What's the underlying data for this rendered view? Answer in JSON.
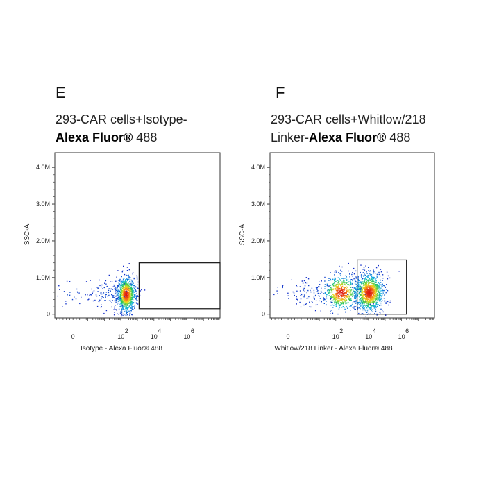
{
  "chart_data": [
    {
      "type": "scatter",
      "panel_label": "E",
      "title_line1": "293-CAR   cells+Isotype-",
      "title_line2_bold": "Alexa Fluor®",
      "title_line2_rest": " 488",
      "xlabel": "Isotype - Alexa Fluor® 488",
      "ylabel": "SSC-A",
      "y_ticks": [
        "0",
        "1.0M",
        "2.0M",
        "3.0M",
        "4.0M"
      ],
      "y_tick_values": [
        0,
        1000000,
        2000000,
        3000000,
        4000000
      ],
      "x_ticks": [
        {
          "base": "0",
          "exp": "",
          "value": -0.9
        },
        {
          "base": "10",
          "exp": "2",
          "value": 2
        },
        {
          "base": "10",
          "exp": "4",
          "value": 4
        },
        {
          "base": "10",
          "exp": "6",
          "value": 6
        }
      ],
      "xlim": [
        -2.0,
        8.0
      ],
      "ylim": [
        -100000,
        4400000
      ],
      "populations": [
        {
          "cx": 2.3,
          "cy": 550000,
          "sx": 0.28,
          "sy": 240000,
          "n": 900,
          "core": true
        },
        {
          "cx": 1.2,
          "cy": 560000,
          "sx": 0.7,
          "sy": 220000,
          "n": 120,
          "core": false
        },
        {
          "cx": -1.0,
          "cy": 580000,
          "sx": 0.45,
          "sy": 180000,
          "n": 25,
          "core": false
        }
      ],
      "gate": {
        "x1": 3.1,
        "x2": 8.0,
        "y1": 150000,
        "y2": 1400000
      }
    },
    {
      "type": "scatter",
      "panel_label": "F",
      "title_line1": "293-CAR     cells+Whitlow/218",
      "title_line2_prefix": "Linker-",
      "title_line2_bold": "Alexa Fluor®",
      "title_line2_rest": " 488",
      "xlabel": "Whitlow/218 Linker - Alexa Fluor® 488",
      "ylabel": "SSC-A",
      "y_ticks": [
        "0",
        "1.0M",
        "2.0M",
        "3.0M",
        "4.0M"
      ],
      "y_tick_values": [
        0,
        1000000,
        2000000,
        3000000,
        4000000
      ],
      "x_ticks": [
        {
          "base": "0",
          "exp": "",
          "value": -0.9
        },
        {
          "base": "10",
          "exp": "2",
          "value": 2
        },
        {
          "base": "10",
          "exp": "4",
          "value": 4
        },
        {
          "base": "10",
          "exp": "6",
          "value": 6
        }
      ],
      "xlim": [
        -2.0,
        8.0
      ],
      "ylim": [
        -100000,
        4400000
      ],
      "populations": [
        {
          "cx": 4.0,
          "cy": 600000,
          "sx": 0.45,
          "sy": 260000,
          "n": 1100,
          "core": true
        },
        {
          "cx": 2.3,
          "cy": 600000,
          "sx": 0.55,
          "sy": 240000,
          "n": 550,
          "core": true
        },
        {
          "cx": 0.6,
          "cy": 580000,
          "sx": 0.8,
          "sy": 200000,
          "n": 90,
          "core": false
        },
        {
          "cx": -1.0,
          "cy": 600000,
          "sx": 0.4,
          "sy": 150000,
          "n": 12,
          "core": false
        }
      ],
      "gate": {
        "x1": 3.3,
        "x2": 6.3,
        "y1": 0,
        "y2": 1480000
      }
    }
  ]
}
